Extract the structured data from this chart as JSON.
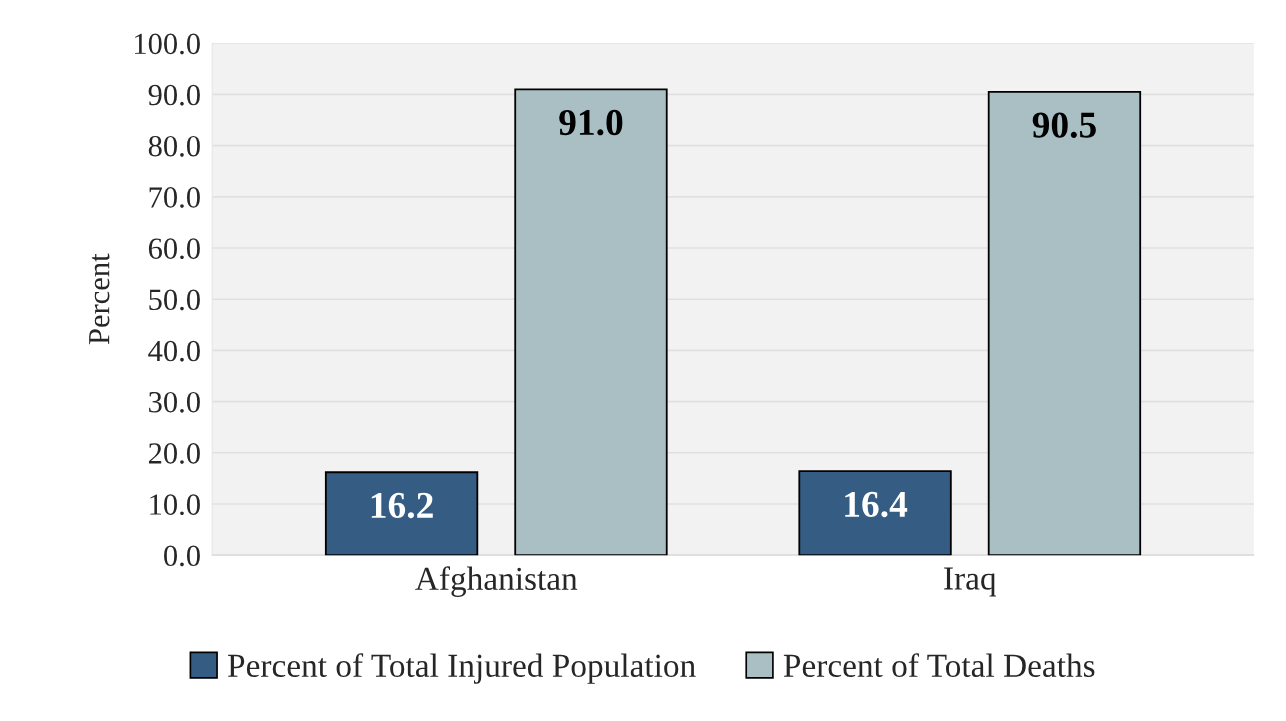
{
  "chart_data": {
    "type": "bar",
    "ylabel": "Percent",
    "categories": [
      "Afghanistan",
      "Iraq"
    ],
    "series": [
      {
        "name": "Percent of Total Injured Population",
        "color": "#355d84",
        "values": [
          16.2,
          16.4
        ],
        "value_labels": [
          "16.2",
          "16.4"
        ]
      },
      {
        "name": "Percent of Total Deaths",
        "color": "#a9bfc4",
        "values": [
          91.0,
          90.5
        ],
        "value_labels": [
          "91.0",
          "90.5"
        ]
      }
    ],
    "ylim": [
      0,
      100
    ],
    "yticks": [
      {
        "value": 0,
        "label": "0.0"
      },
      {
        "value": 10,
        "label": "10.0"
      },
      {
        "value": 20,
        "label": "20.0"
      },
      {
        "value": 30,
        "label": "30.0"
      },
      {
        "value": 40,
        "label": "40.0"
      },
      {
        "value": 50,
        "label": "50.0"
      },
      {
        "value": 60,
        "label": "60.0"
      },
      {
        "value": 70,
        "label": "70.0"
      },
      {
        "value": 80,
        "label": "80.0"
      },
      {
        "value": 90,
        "label": "90.0"
      },
      {
        "value": 100,
        "label": "100.0"
      }
    ],
    "grid": "y",
    "legend": "bottom"
  }
}
